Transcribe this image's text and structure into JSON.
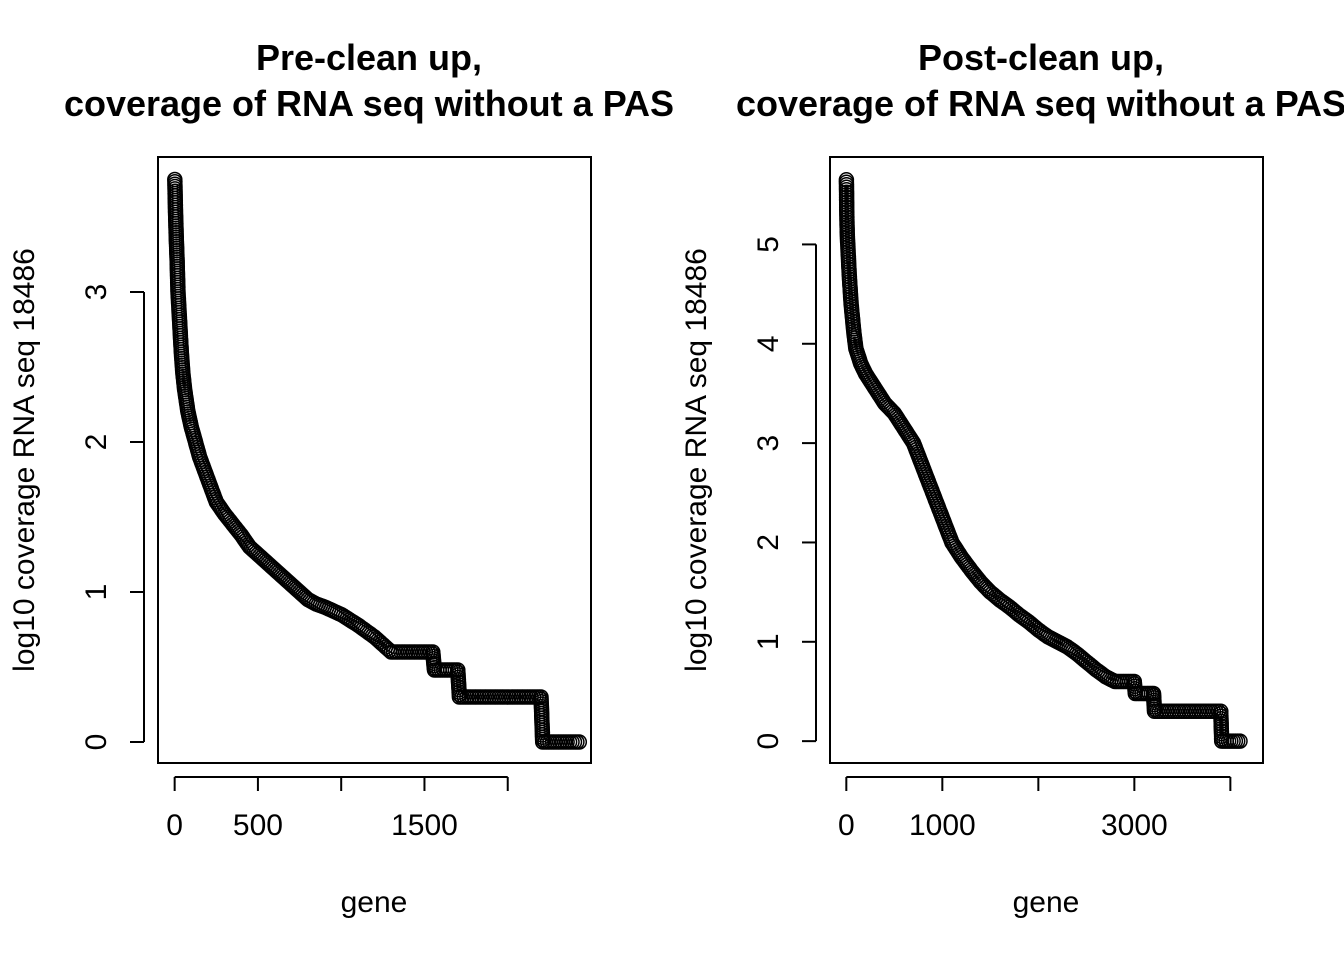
{
  "chart_data": [
    {
      "type": "scatter",
      "title_line1": "Pre-clean up,",
      "title_line2": "coverage of RNA seq without a PAS",
      "xlabel": "gene",
      "ylabel": "log10 coverage RNA seq 18486",
      "xlim": [
        -100,
        2500
      ],
      "ylim": [
        -0.14,
        3.9
      ],
      "x_ticks": [
        0,
        500,
        1000,
        1500,
        2000
      ],
      "x_tick_labels": [
        "0",
        "500",
        "",
        "1500",
        ""
      ],
      "y_ticks": [
        0,
        1,
        2,
        3
      ],
      "y_tick_labels": [
        "0",
        "1",
        "2",
        "3"
      ],
      "curve": [
        [
          1,
          3.75
        ],
        [
          6,
          3.5
        ],
        [
          10,
          3.35
        ],
        [
          15,
          3.2
        ],
        [
          20,
          3.0
        ],
        [
          30,
          2.8
        ],
        [
          40,
          2.6
        ],
        [
          50,
          2.45
        ],
        [
          60,
          2.35
        ],
        [
          80,
          2.2
        ],
        [
          100,
          2.1
        ],
        [
          150,
          1.9
        ],
        [
          200,
          1.75
        ],
        [
          250,
          1.6
        ],
        [
          300,
          1.52
        ],
        [
          350,
          1.45
        ],
        [
          400,
          1.38
        ],
        [
          450,
          1.3
        ],
        [
          500,
          1.25
        ],
        [
          550,
          1.2
        ],
        [
          600,
          1.15
        ],
        [
          650,
          1.1
        ],
        [
          700,
          1.05
        ],
        [
          750,
          1.0
        ],
        [
          800,
          0.95
        ],
        [
          850,
          0.92
        ],
        [
          900,
          0.9
        ],
        [
          1000,
          0.85
        ],
        [
          1100,
          0.78
        ],
        [
          1200,
          0.7
        ],
        [
          1300,
          0.6
        ],
        [
          1550,
          0.6
        ],
        [
          1560,
          0.48
        ],
        [
          1700,
          0.48
        ],
        [
          1710,
          0.3
        ],
        [
          2200,
          0.3
        ],
        [
          2210,
          0.0
        ],
        [
          2430,
          0.0
        ]
      ]
    },
    {
      "type": "scatter",
      "title_line1": "Post-clean up,",
      "title_line2": "coverage of RNA seq without a PAS",
      "xlabel": "gene",
      "ylabel": "log10 coverage RNA seq 18486",
      "xlim": [
        -170,
        4340
      ],
      "ylim": [
        -0.22,
        5.88
      ],
      "x_ticks": [
        0,
        1000,
        2000,
        3000,
        4000
      ],
      "x_tick_labels": [
        "0",
        "1000",
        "",
        "3000",
        ""
      ],
      "y_ticks": [
        0,
        1,
        2,
        3,
        4,
        5
      ],
      "y_tick_labels": [
        "0",
        "1",
        "2",
        "3",
        "4",
        "5"
      ],
      "curve": [
        [
          1,
          5.65
        ],
        [
          5,
          5.3
        ],
        [
          10,
          5.1
        ],
        [
          20,
          4.9
        ],
        [
          30,
          4.7
        ],
        [
          50,
          4.4
        ],
        [
          80,
          4.1
        ],
        [
          100,
          3.95
        ],
        [
          150,
          3.8
        ],
        [
          200,
          3.7
        ],
        [
          300,
          3.55
        ],
        [
          400,
          3.4
        ],
        [
          500,
          3.3
        ],
        [
          600,
          3.15
        ],
        [
          700,
          3.0
        ],
        [
          800,
          2.75
        ],
        [
          900,
          2.5
        ],
        [
          1000,
          2.25
        ],
        [
          1100,
          2.0
        ],
        [
          1200,
          1.85
        ],
        [
          1300,
          1.72
        ],
        [
          1400,
          1.6
        ],
        [
          1500,
          1.5
        ],
        [
          1600,
          1.42
        ],
        [
          1700,
          1.35
        ],
        [
          1800,
          1.27
        ],
        [
          1900,
          1.2
        ],
        [
          2000,
          1.12
        ],
        [
          2100,
          1.05
        ],
        [
          2200,
          1.0
        ],
        [
          2300,
          0.95
        ],
        [
          2400,
          0.88
        ],
        [
          2500,
          0.8
        ],
        [
          2600,
          0.72
        ],
        [
          2700,
          0.65
        ],
        [
          2800,
          0.6
        ],
        [
          3000,
          0.6
        ],
        [
          3010,
          0.48
        ],
        [
          3200,
          0.48
        ],
        [
          3210,
          0.3
        ],
        [
          3900,
          0.3
        ],
        [
          3910,
          0.0
        ],
        [
          4100,
          0.0
        ]
      ]
    }
  ]
}
